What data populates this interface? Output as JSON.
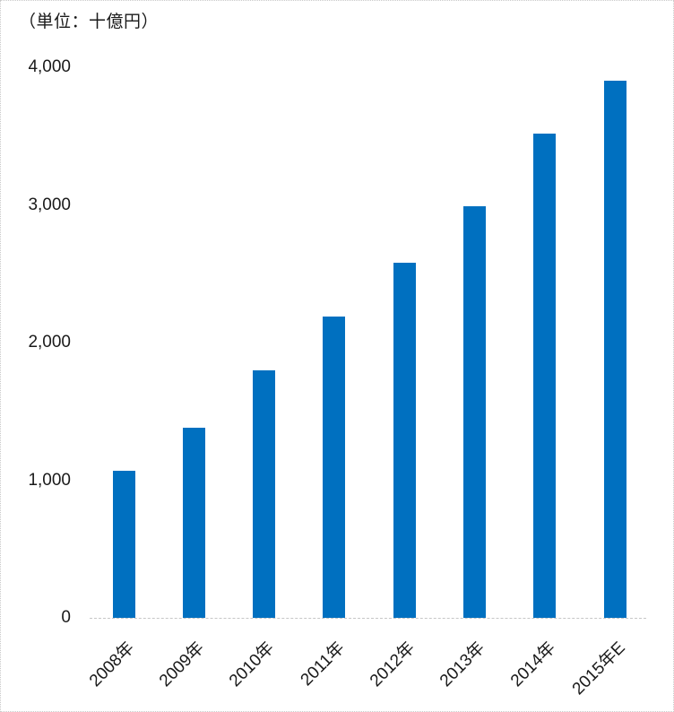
{
  "unit_label": "（単位：十億円）",
  "colors": {
    "bar": "#0070C0",
    "axis_line": "#c6c6c6",
    "text": "#1a1a1a",
    "frame_border": "#c9c9c9",
    "background": "#ffffff"
  },
  "chart_data": {
    "type": "bar",
    "title": "（単位：十億円）",
    "categories": [
      "2008年",
      "2009年",
      "2010年",
      "2011年",
      "2012年",
      "2013年",
      "2014年",
      "2015年E"
    ],
    "values": [
      1070,
      1380,
      1800,
      2190,
      2580,
      2990,
      3520,
      3900
    ],
    "xlabel": "",
    "ylabel": "",
    "ylim": [
      0,
      4000
    ],
    "ytick_interval": 1000,
    "ytick_labels": [
      "0",
      "1,000",
      "2,000",
      "3,000",
      "4,000"
    ],
    "xtick_rotation_deg": -45,
    "grid": false,
    "legend_position": "none",
    "bar_color": "#0070C0"
  }
}
